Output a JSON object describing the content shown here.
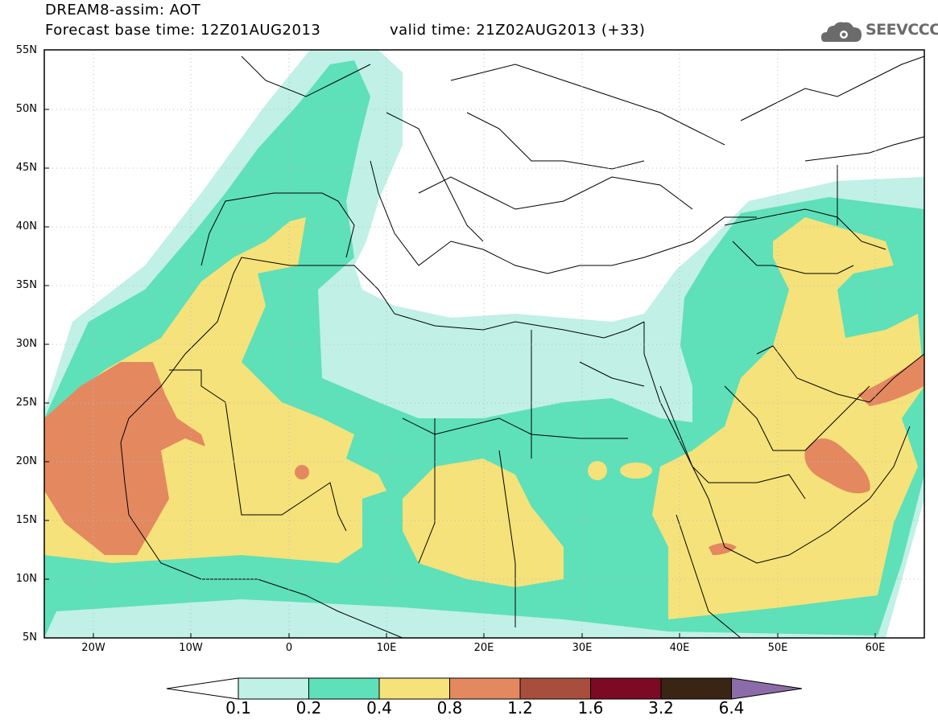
{
  "header": {
    "title": "DREAM8-assim: AOT",
    "base_time": "Forecast base time: 12Z01AUG2013",
    "valid_time": "valid time: 21Z02AUG2013 (+33)"
  },
  "logo": {
    "text": "SEEVCCC",
    "icon": "cloud-logo-icon"
  },
  "map": {
    "lat_labels": [
      "55N",
      "50N",
      "45N",
      "40N",
      "35N",
      "30N",
      "25N",
      "20N",
      "15N",
      "10N",
      "5N"
    ],
    "lon_labels": [
      "20W",
      "10W",
      "0",
      "10E",
      "20E",
      "30E",
      "40E",
      "50E",
      "60E"
    ],
    "grid": true,
    "colors": {
      "ocean_land_bg": "#ffffff",
      "border_lines": "#000000"
    }
  },
  "colorbar": {
    "levels": [
      "0.1",
      "0.2",
      "0.4",
      "0.8",
      "1.2",
      "1.6",
      "3.2",
      "6.4"
    ],
    "colors": [
      "#c0f0e6",
      "#5ee0b8",
      "#f5e27a",
      "#e48860",
      "#a84e3c",
      "#7c0a24",
      "#3a2414",
      "#8c6ca8"
    ],
    "under_color": "#ffffff",
    "over_color": "#8c6ca8"
  }
}
